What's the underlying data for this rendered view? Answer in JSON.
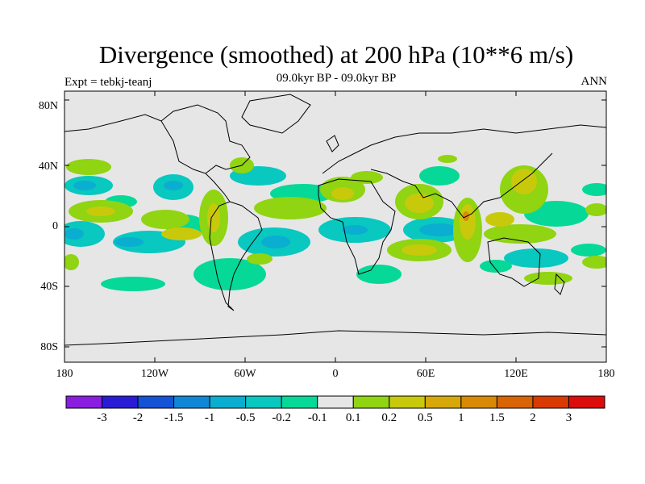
{
  "figure": {
    "title": "Divergence (smoothed) at 200 hPa (10**6 m/s)",
    "subtitle": "09.0kyr BP - 09.0kyr BP",
    "left_label": "Expt = tebkj-teanj",
    "right_label": "ANN"
  },
  "map": {
    "lat_labels": [
      "80N",
      "40N",
      "0",
      "40S",
      "80S"
    ],
    "lon_labels": [
      "180",
      "120W",
      "60W",
      "0",
      "60E",
      "120E",
      "180"
    ],
    "background_color": "#e6e6e6",
    "coastline_color": "#000000"
  },
  "colorbar": {
    "levels": [
      "-3",
      "-2",
      "-1.5",
      "-1",
      "-0.5",
      "-0.2",
      "-0.1",
      "0.1",
      "0.2",
      "0.5",
      "1",
      "1.5",
      "2",
      "3"
    ],
    "colors": [
      "#8a1ee0",
      "#2a1cd6",
      "#1453d6",
      "#0f87d6",
      "#0aaed0",
      "#08c8c0",
      "#06d897",
      "#e6e6e6",
      "#90d412",
      "#c9c90c",
      "#d8a808",
      "#d88a06",
      "#d86404",
      "#d83a02",
      "#dc0c0c"
    ]
  }
}
